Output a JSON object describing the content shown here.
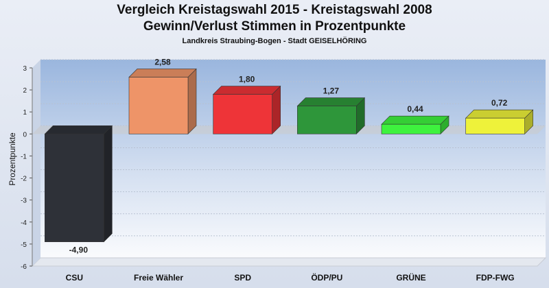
{
  "title": "Vergleich Kreistagswahl 2015 - Kreistagswahl 2008",
  "subtitle": "Gewinn/Verlust Stimmen in Prozentpunkte",
  "caption": "Landkreis Straubing-Bogen - Stadt GEISELHÖRING",
  "chart_data": {
    "type": "bar",
    "title": "Vergleich Kreistagswahl 2015 - Kreistagswahl 2008",
    "subtitle": "Gewinn/Verlust Stimmen in Prozentpunkte",
    "ylabel": "Prozentpunkte",
    "xlabel": "",
    "ylim": [
      -6,
      3
    ],
    "yticks": [
      3,
      2,
      1,
      0,
      -1,
      -2,
      -3,
      -4,
      -5,
      -6
    ],
    "grid": true,
    "legend": "none",
    "categories": [
      "CSU",
      "Freie Wähler",
      "SPD",
      "ÖDP/PU",
      "GRÜNE",
      "FDP-FWG"
    ],
    "values": [
      -4.9,
      2.58,
      1.8,
      1.27,
      0.44,
      0.72
    ],
    "value_labels": [
      "-4,90",
      "2,58",
      "1,80",
      "1,27",
      "0,44",
      "0,72"
    ],
    "colors": [
      "#2e3138",
      "#ee9468",
      "#ee3438",
      "#2e963a",
      "#3ef23e",
      "#eef23a"
    ]
  }
}
